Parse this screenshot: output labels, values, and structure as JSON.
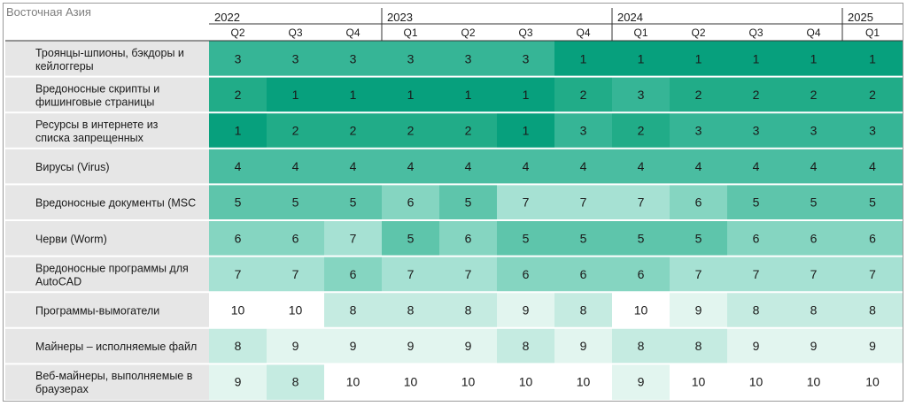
{
  "chart_data": {
    "type": "heatmap",
    "title": "Восточная Азия",
    "years": [
      {
        "label": "2022",
        "start": 0,
        "span": 3
      },
      {
        "label": "2023",
        "start": 3,
        "span": 4
      },
      {
        "label": "2024",
        "start": 7,
        "span": 4
      },
      {
        "label": "2025",
        "start": 11,
        "span": 1
      }
    ],
    "quarters": [
      "Q2",
      "Q3",
      "Q4",
      "Q1",
      "Q2",
      "Q3",
      "Q4",
      "Q1",
      "Q2",
      "Q3",
      "Q4",
      "Q1"
    ],
    "rows": [
      {
        "label": "Троянцы-шпионы, бэкдоры и кейлоггеры",
        "values": [
          3,
          3,
          3,
          3,
          3,
          3,
          1,
          1,
          1,
          1,
          1,
          1
        ]
      },
      {
        "label": "Вредоносные скрипты и фишинговые страницы",
        "values": [
          2,
          1,
          1,
          1,
          1,
          1,
          2,
          3,
          2,
          2,
          2,
          2
        ]
      },
      {
        "label": "Ресурсы в интернете из списка запрещенных",
        "values": [
          1,
          2,
          2,
          2,
          2,
          1,
          3,
          2,
          3,
          3,
          3,
          3
        ]
      },
      {
        "label": "Вирусы (Virus)",
        "values": [
          4,
          4,
          4,
          4,
          4,
          4,
          4,
          4,
          4,
          4,
          4,
          4
        ]
      },
      {
        "label": "Вредоносные документы (MSC",
        "values": [
          5,
          5,
          5,
          6,
          5,
          7,
          7,
          7,
          6,
          5,
          5,
          5
        ]
      },
      {
        "label": "Черви (Worm)",
        "values": [
          6,
          6,
          7,
          5,
          6,
          5,
          5,
          5,
          5,
          6,
          6,
          6
        ]
      },
      {
        "label": "Вредоносные программы для AutoCAD",
        "values": [
          7,
          7,
          6,
          7,
          7,
          6,
          6,
          6,
          7,
          7,
          7,
          7
        ]
      },
      {
        "label": "Программы-вымогатели",
        "values": [
          10,
          10,
          8,
          8,
          8,
          9,
          8,
          10,
          9,
          8,
          8,
          8
        ]
      },
      {
        "label": "Майнеры – исполняемые файл",
        "values": [
          8,
          9,
          9,
          9,
          9,
          8,
          9,
          8,
          8,
          9,
          9,
          9
        ]
      },
      {
        "label": "Веб-майнеры, выполняемые в браузерах",
        "values": [
          9,
          8,
          10,
          10,
          10,
          10,
          10,
          9,
          10,
          10,
          10,
          10
        ]
      }
    ],
    "colors": {
      "1": "#07a07d",
      "2": "#21ac88",
      "3": "#36b596",
      "4": "#4abda1",
      "5": "#5ec5ab",
      "6": "#85d5c1",
      "7": "#a6e1d3",
      "8": "#c5ebe1",
      "9": "#e2f5ef",
      "10": "#ffffff",
      "label_bg": "#e6e6e6",
      "text": "#1a1a1a"
    }
  }
}
